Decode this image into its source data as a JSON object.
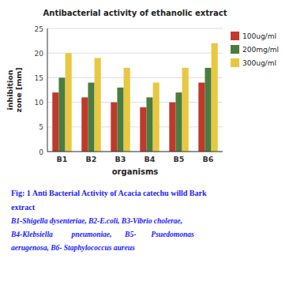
{
  "chart_data": {
    "type": "bar",
    "title": "Antibacterial activity of ethanolic extract",
    "categories": [
      "B1",
      "B2",
      "B3",
      "B4",
      "B5",
      "B6"
    ],
    "series": [
      {
        "name": "100ug/ml",
        "color": "#c0392b",
        "values": [
          12,
          11,
          10,
          9,
          10,
          14
        ]
      },
      {
        "name": "200mg/ml",
        "color": "#4a7c3f",
        "values": [
          15,
          14,
          13,
          11,
          12,
          17
        ]
      },
      {
        "name": "300ug/ml",
        "color": "#e8c840",
        "values": [
          20,
          19,
          17,
          14,
          17,
          22
        ]
      }
    ],
    "ylabel": "inhibition\nzone [mm]",
    "xlabel": "organisms",
    "ylim": [
      0,
      25
    ],
    "yticks": [
      0,
      5,
      10,
      15,
      20,
      25
    ],
    "grid": true,
    "legend": "right",
    "annotations": [
      {
        "text": "Fig: 1 Anti Bacterial Activity of Acacia catechu willd Bark",
        "color": "#1a1aff"
      },
      {
        "text": "extract",
        "color": "#1a1aff"
      },
      {
        "text": "B1-Shigella dysenteriae, B2-E.coli, B3-Vibrio cholerae,",
        "color": "#1a1aff"
      },
      {
        "text": "B4-Klebsiella          pneumoniae,       B5-        Psuedomonas",
        "color": "#1a1aff"
      },
      {
        "text": "aerugenosa, B6- Staphylococcus aureus",
        "color": "#1a1aff"
      }
    ]
  }
}
